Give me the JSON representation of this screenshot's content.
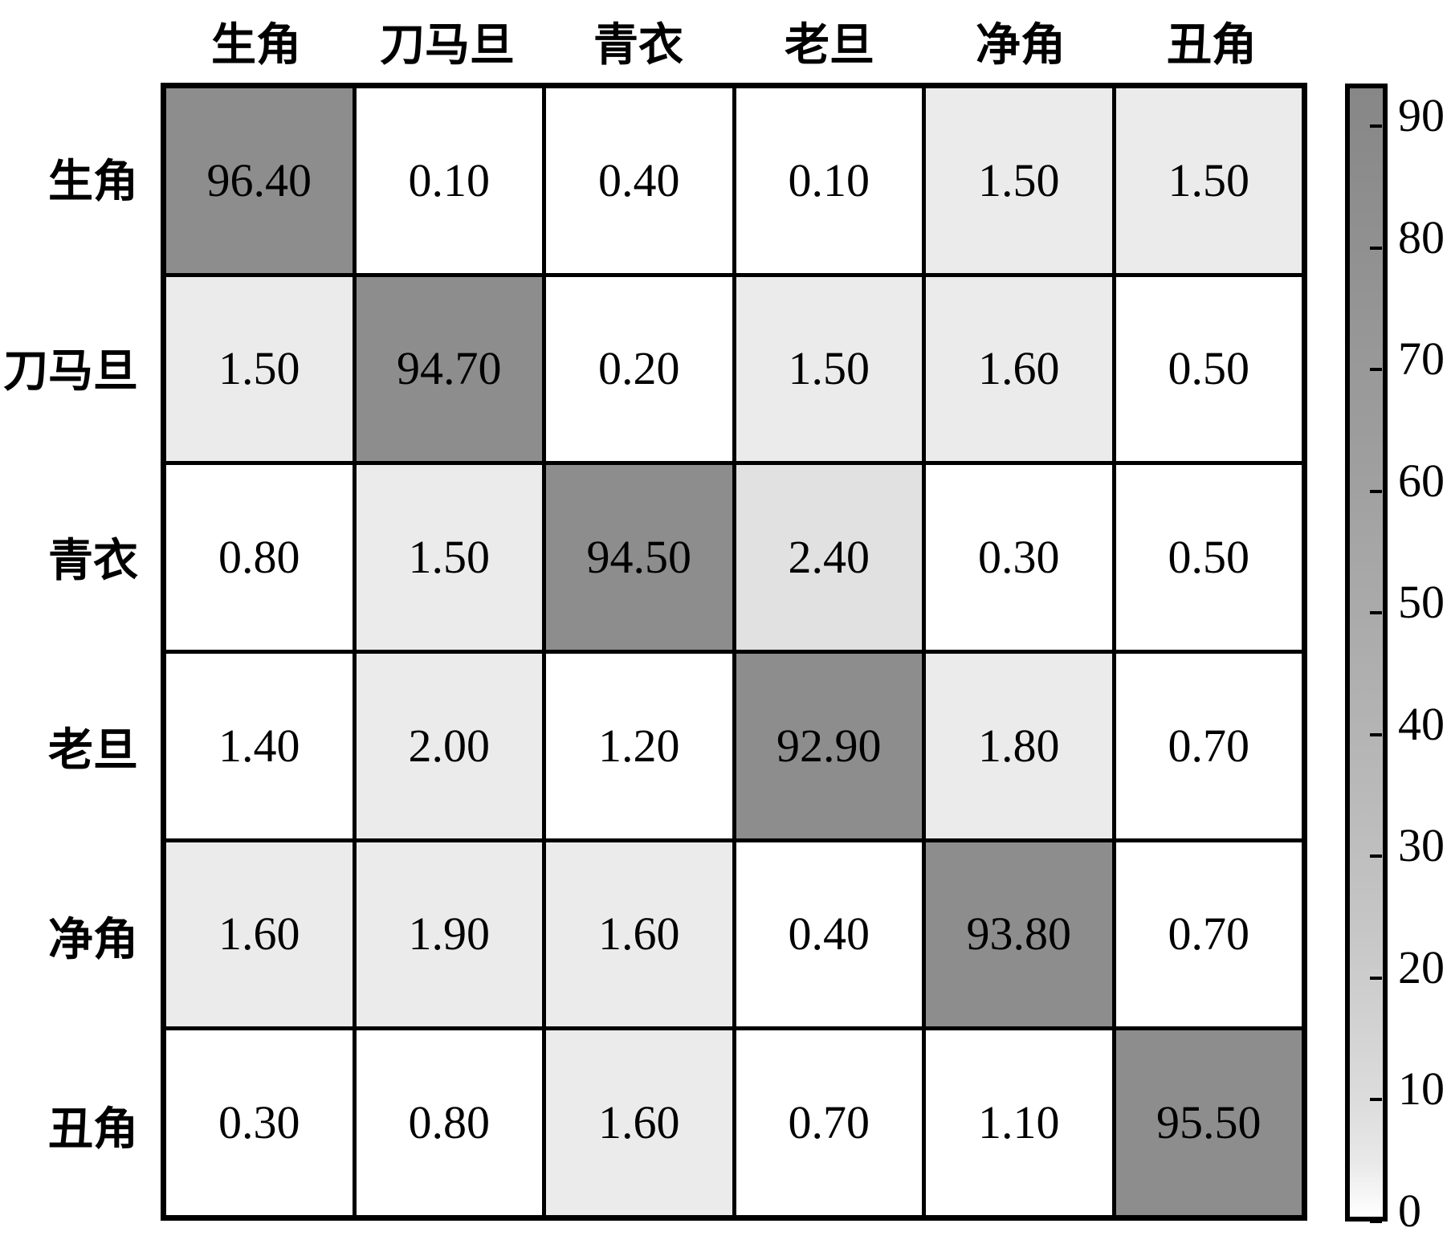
{
  "chart_data": {
    "type": "heatmap",
    "title": "",
    "xlabel": "",
    "ylabel": "",
    "x_categories": [
      "生角",
      "刀马旦",
      "青衣",
      "老旦",
      "净角",
      "丑角"
    ],
    "y_categories": [
      "生角",
      "刀马旦",
      "青衣",
      "老旦",
      "净角",
      "丑角"
    ],
    "values": [
      [
        96.4,
        0.1,
        0.4,
        0.1,
        1.5,
        1.5
      ],
      [
        1.5,
        94.7,
        0.2,
        1.5,
        1.6,
        0.5
      ],
      [
        0.8,
        1.5,
        94.5,
        2.4,
        0.3,
        0.5
      ],
      [
        1.4,
        2.0,
        1.2,
        92.9,
        1.8,
        0.7
      ],
      [
        1.6,
        1.9,
        1.6,
        0.4,
        93.8,
        0.7
      ],
      [
        0.3,
        0.8,
        1.6,
        0.7,
        1.1,
        95.5
      ]
    ],
    "value_decimals": 2,
    "grid": "on",
    "legend_position": "right-colorbar",
    "colorbar": {
      "ticks": [
        90,
        80,
        70,
        60,
        50,
        40,
        30,
        20,
        10,
        0
      ],
      "vmin": 0,
      "vmax": 93.5,
      "top_color": "#878787",
      "bottom_color": "#ffffff"
    },
    "colors": {
      "diagonal_fill": "#8d8d8d",
      "light_fill": "#ebebeb",
      "medium_light_fill": "#e1e1e1",
      "white_fill": "#ffffff",
      "grid_line": "#000000",
      "text": "#000000"
    }
  }
}
